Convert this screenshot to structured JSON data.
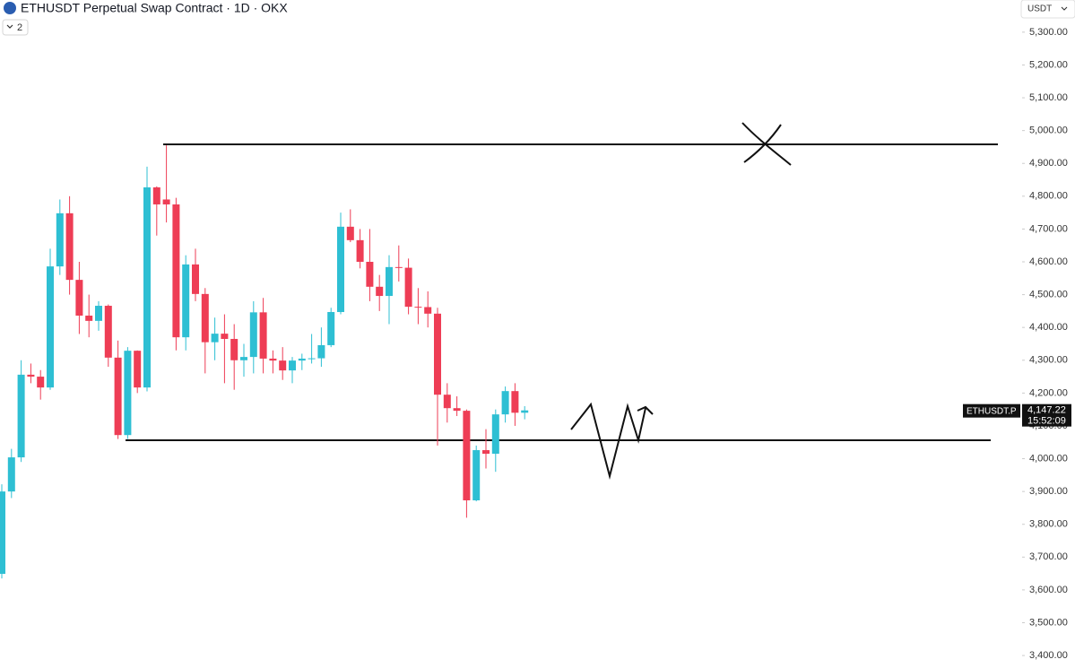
{
  "chart_data": {
    "type": "candlestick",
    "title": "ETHUSDT Perpetual Swap Contract · 1D · OKX",
    "indicator_count": "2",
    "currency": "USDT",
    "symbol": "ETHUSDT.P",
    "last_price": {
      "value": 4147.22,
      "label": "4,147.22"
    },
    "countdown": "15:52:09",
    "up_color": "#2ebfd3",
    "down_color": "#ee3d55",
    "categories": [
      null,
      null,
      null,
      null,
      null,
      null,
      null,
      null,
      null,
      null,
      null,
      null,
      null,
      null,
      null,
      null,
      null,
      null,
      null,
      null,
      null,
      null,
      null,
      null,
      null,
      null,
      null,
      null,
      null,
      null,
      null,
      null,
      null,
      null,
      null,
      null,
      null,
      null,
      null,
      null,
      null,
      null,
      null,
      null,
      null,
      null,
      null,
      null,
      null,
      null,
      null,
      null,
      null,
      null,
      null
    ],
    "open": [
      3649,
      3900,
      4004,
      4256,
      4250,
      4217,
      4586,
      4748,
      4545,
      4436,
      4420,
      4466,
      4308,
      4072,
      4329,
      4217,
      4827,
      4790,
      4775,
      4370,
      4592,
      4502,
      4355,
      4381,
      4365,
      4300,
      4310,
      4446,
      4305,
      4299,
      4269,
      4299,
      4305,
      4306,
      4346,
      4447,
      4707,
      4666,
      4600,
      4524,
      4496,
      4584,
      4582,
      4463,
      4462,
      4442,
      4195,
      4154,
      4146,
      3873,
      4026,
      4015,
      4135,
      4206,
      4140
    ],
    "high": [
      3922,
      4030,
      4300,
      4290,
      4270,
      4640,
      4790,
      4800,
      4600,
      4500,
      4480,
      4470,
      4360,
      4340,
      4330,
      4890,
      4830,
      4955,
      4795,
      4620,
      4640,
      4520,
      4430,
      4440,
      4410,
      4350,
      4480,
      4490,
      4330,
      4340,
      4310,
      4320,
      4380,
      4400,
      4460,
      4750,
      4760,
      4700,
      4700,
      4560,
      4620,
      4650,
      4610,
      4520,
      4510,
      4460,
      4230,
      4190,
      4150,
      4040,
      4090,
      4150,
      4220,
      4230,
      4160
    ],
    "low": [
      3635,
      3880,
      3990,
      4230,
      4180,
      4210,
      4560,
      4500,
      4380,
      4370,
      4390,
      4280,
      4060,
      4060,
      4200,
      4205,
      4680,
      4720,
      4330,
      4330,
      4480,
      4260,
      4300,
      4230,
      4210,
      4250,
      4260,
      4260,
      4260,
      4240,
      4230,
      4270,
      4290,
      4280,
      4340,
      4440,
      4660,
      4580,
      4480,
      4450,
      4410,
      4540,
      4440,
      4410,
      4400,
      4040,
      4110,
      4130,
      3820,
      3870,
      3970,
      3960,
      4110,
      4100,
      4120
    ],
    "close": [
      3900,
      4004,
      4256,
      4250,
      4217,
      4586,
      4748,
      4545,
      4436,
      4420,
      4466,
      4308,
      4072,
      4329,
      4217,
      4827,
      4775,
      4775,
      4370,
      4592,
      4502,
      4355,
      4381,
      4365,
      4300,
      4310,
      4446,
      4305,
      4299,
      4269,
      4299,
      4305,
      4306,
      4346,
      4447,
      4707,
      4666,
      4600,
      4524,
      4496,
      4584,
      4582,
      4463,
      4462,
      4442,
      4195,
      4154,
      4146,
      3873,
      4026,
      4015,
      4135,
      4206,
      4140,
      4147.22
    ],
    "levels": [
      4958,
      4056
    ],
    "ylim": [
      3362,
      5398
    ],
    "yticks": [
      {
        "value": 3400,
        "label": "3,400.00"
      },
      {
        "value": 3500,
        "label": "3,500.00"
      },
      {
        "value": 3600,
        "label": "3,600.00"
      },
      {
        "value": 3700,
        "label": "3,700.00"
      },
      {
        "value": 3800,
        "label": "3,800.00"
      },
      {
        "value": 3900,
        "label": "3,900.00"
      },
      {
        "value": 4000,
        "label": "4,000.00"
      },
      {
        "value": 4100,
        "label": "4,100.00"
      },
      {
        "value": 4200,
        "label": "4,200.00"
      },
      {
        "value": 4300,
        "label": "4,300.00"
      },
      {
        "value": 4400,
        "label": "4,400.00"
      },
      {
        "value": 4500,
        "label": "4,500.00"
      },
      {
        "value": 4600,
        "label": "4,600.00"
      },
      {
        "value": 4700,
        "label": "4,700.00"
      },
      {
        "value": 4800,
        "label": "4,800.00"
      },
      {
        "value": 4900,
        "label": "4,900.00"
      },
      {
        "value": 5000,
        "label": "5,000.00"
      },
      {
        "value": 5100,
        "label": "5,100.00"
      },
      {
        "value": 5200,
        "label": "5,200.00"
      },
      {
        "value": 5300,
        "label": "5,300.00"
      }
    ]
  }
}
